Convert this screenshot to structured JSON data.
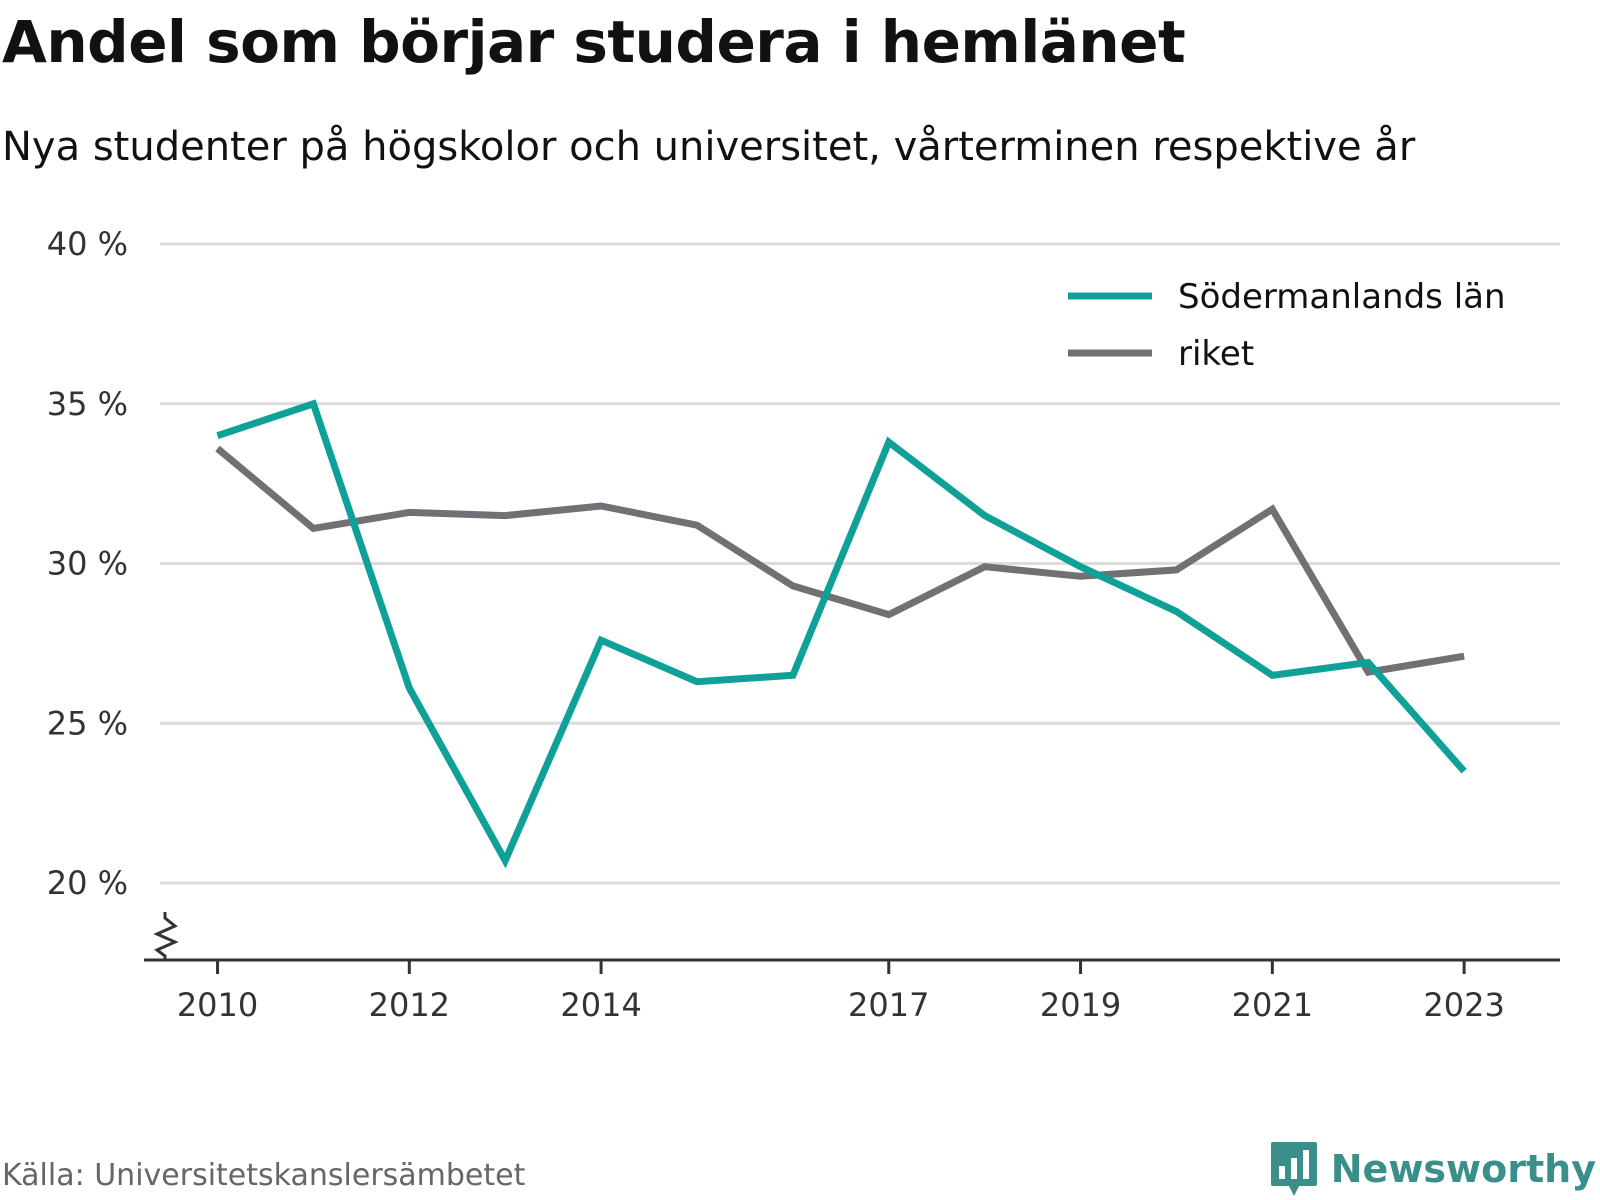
{
  "header": {
    "title": "Andel som börjar studera i hemlänet",
    "subtitle": "Nya studenter på högskolor och universitet, vårterminen respektive år"
  },
  "footer": {
    "source": "Källa: Universitetskanslersämbetet",
    "brand": "Newsworthy",
    "brand_icon": "bar-chart-speech-icon"
  },
  "colors": {
    "primary": "#0fa197",
    "secondary": "#707075",
    "grid": "#dcdcdc",
    "axis": "#333333",
    "brand": "#3a8f8a"
  },
  "chart_data": {
    "type": "line",
    "title": "Andel som börjar studera i hemlänet",
    "subtitle": "Nya studenter på högskolor och universitet, vårterminen respektive år",
    "x": [
      2010,
      2011,
      2012,
      2013,
      2014,
      2015,
      2016,
      2017,
      2018,
      2019,
      2020,
      2021,
      2022,
      2023
    ],
    "x_tick_labels": [
      "2010",
      "2012",
      "2014",
      "2017",
      "2019",
      "2021",
      "2023"
    ],
    "y_tick_labels": [
      "20 %",
      "25 %",
      "30 %",
      "35 %",
      "40 %"
    ],
    "y_ticks": [
      20,
      25,
      30,
      35,
      40
    ],
    "ylim": [
      20,
      40
    ],
    "y_axis_break": true,
    "grid": true,
    "legend_position": "top-right",
    "series": [
      {
        "name": "Södermanlands län",
        "color": "#0fa197",
        "values": [
          34.0,
          35.0,
          26.1,
          20.7,
          27.6,
          26.3,
          26.5,
          33.8,
          31.5,
          29.9,
          28.5,
          26.5,
          26.9,
          23.5
        ]
      },
      {
        "name": "riket",
        "color": "#707075",
        "values": [
          33.6,
          31.1,
          31.6,
          31.5,
          31.8,
          31.2,
          29.3,
          28.4,
          29.9,
          29.6,
          29.8,
          31.7,
          26.6,
          27.1
        ]
      }
    ]
  }
}
